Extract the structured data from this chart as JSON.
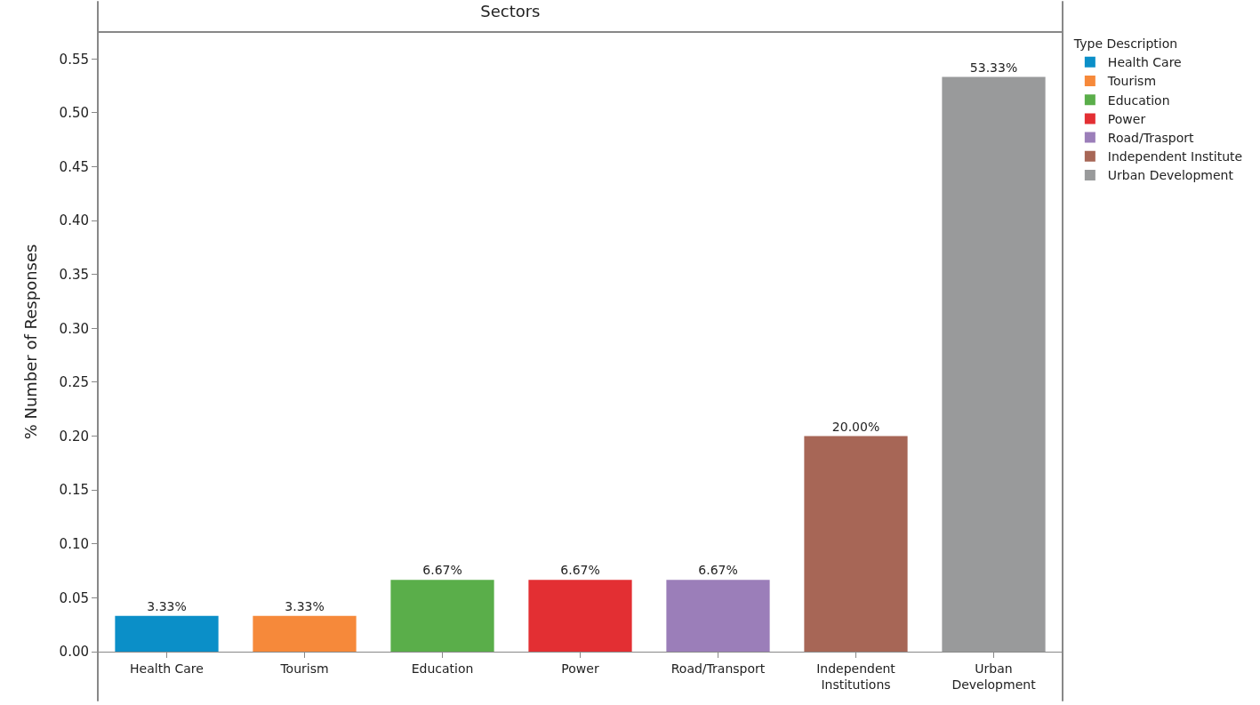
{
  "chart_data": {
    "type": "bar",
    "title": "Sectors",
    "ylabel": "% Number of Responses",
    "legend_title": "Type Description",
    "legend": "top right",
    "grid": false,
    "categories": [
      "Health Care",
      "Tourism",
      "Education",
      "Power",
      "Road/Transport",
      "Independent Institutions",
      "Urban Development"
    ],
    "series": [
      {
        "name": "Health Care",
        "color": "#0b8fc8",
        "values": [
          0.0333,
          null,
          null,
          null,
          null,
          null,
          null
        ],
        "value_labels": [
          "3.33%",
          null,
          null,
          null,
          null,
          null,
          null
        ]
      },
      {
        "name": "Tourism",
        "color": "#f6893a",
        "values": [
          null,
          0.0333,
          null,
          null,
          null,
          null,
          null
        ],
        "value_labels": [
          null,
          "3.33%",
          null,
          null,
          null,
          null,
          null
        ]
      },
      {
        "name": "Education",
        "color": "#5aae4a",
        "values": [
          null,
          null,
          0.0667,
          null,
          null,
          null,
          null
        ],
        "value_labels": [
          null,
          null,
          "6.67%",
          null,
          null,
          null,
          null
        ]
      },
      {
        "name": "Power",
        "color": "#e32f33",
        "values": [
          null,
          null,
          null,
          0.0667,
          null,
          null,
          null
        ],
        "value_labels": [
          null,
          null,
          null,
          "6.67%",
          null,
          null,
          null
        ]
      },
      {
        "name": "Road/Trasport",
        "color": "#9b7eb9",
        "values": [
          null,
          null,
          null,
          null,
          0.0667,
          null,
          null
        ],
        "value_labels": [
          null,
          null,
          null,
          null,
          "6.67%",
          null,
          null
        ]
      },
      {
        "name": "Independent Institute",
        "color": "#a76656",
        "values": [
          null,
          null,
          null,
          null,
          null,
          0.2,
          null
        ],
        "value_labels": [
          null,
          null,
          null,
          null,
          null,
          "20.00%",
          null
        ]
      },
      {
        "name": "Urban Development",
        "color": "#999a9b",
        "values": [
          null,
          null,
          null,
          null,
          null,
          null,
          0.5333
        ],
        "value_labels": [
          null,
          null,
          null,
          null,
          null,
          null,
          "53.33%"
        ]
      }
    ],
    "ylim": [
      0,
      0.575
    ],
    "yticks": [
      {
        "value": 0,
        "label": "0.00"
      },
      {
        "value": 0.05,
        "label": "0.05"
      },
      {
        "value": 0.1,
        "label": "0.10"
      },
      {
        "value": 0.15,
        "label": "0.15"
      },
      {
        "value": 0.2,
        "label": "0.20"
      },
      {
        "value": 0.25,
        "label": "0.25"
      },
      {
        "value": 0.3,
        "label": "0.30"
      },
      {
        "value": 0.35,
        "label": "0.35"
      },
      {
        "value": 0.4,
        "label": "0.40"
      },
      {
        "value": 0.45,
        "label": "0.45"
      },
      {
        "value": 0.5,
        "label": "0.50"
      },
      {
        "value": 0.55,
        "label": "0.55"
      }
    ]
  }
}
